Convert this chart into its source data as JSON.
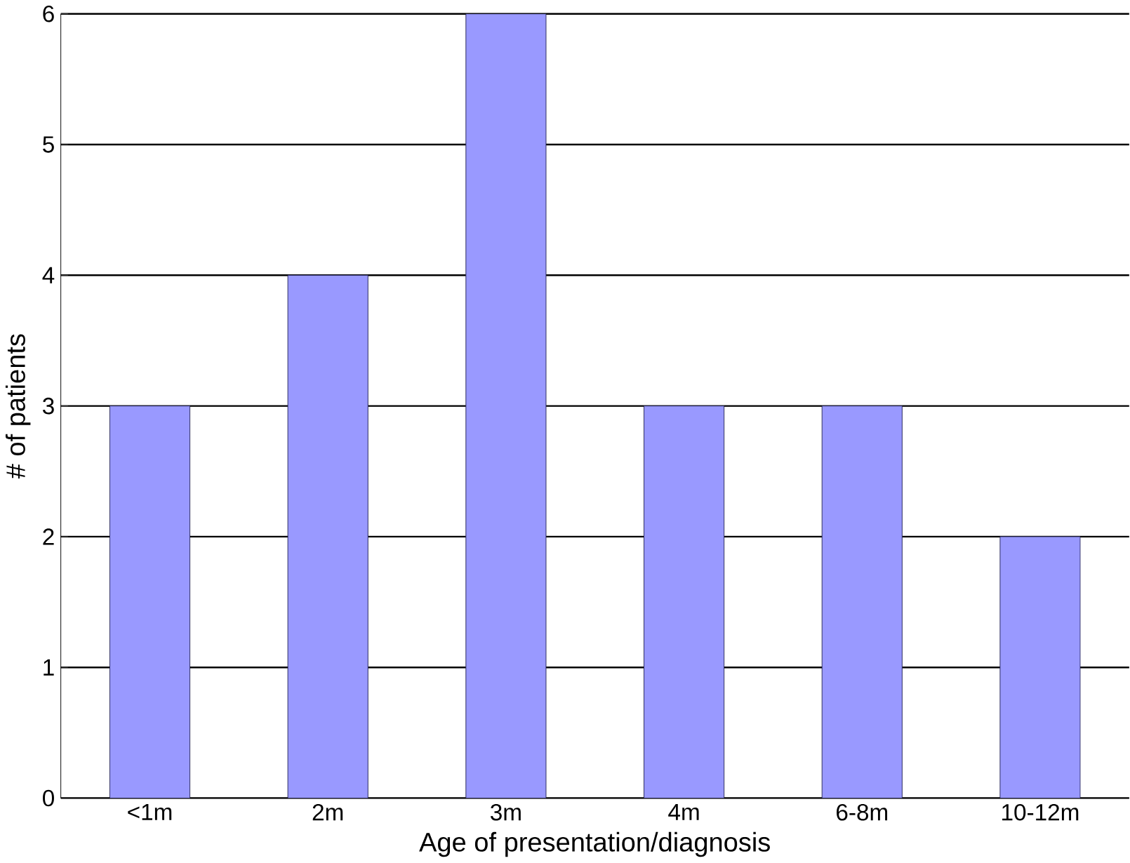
{
  "chart_data": {
    "type": "bar",
    "xlabel": "Age of presentation/diagnosis",
    "ylabel": "# of patients",
    "categories": [
      "<1m",
      "2m",
      "3m",
      "4m",
      "6-8m",
      "10-12m"
    ],
    "values": [
      3,
      4,
      6,
      3,
      3,
      2
    ],
    "color": "#9999ff",
    "ylim": [
      0,
      6
    ],
    "yticks": [
      0,
      1,
      2,
      3,
      4,
      5,
      6
    ],
    "grid": "y"
  }
}
